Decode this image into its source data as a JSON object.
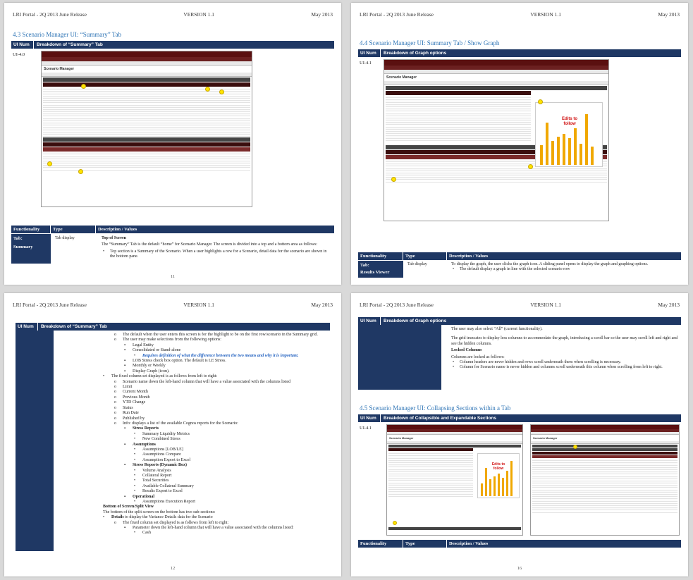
{
  "header": {
    "left": "LRI Portal - 2Q 2013 June Release",
    "center": "VERSION 1.1",
    "right": "May 2013"
  },
  "page1": {
    "section": "4.3   Scenario Manager UI: “Summary” Tab",
    "bar_col1": "UI Num",
    "bar_col2": "Breakdown of “Summary” Tab",
    "uinum": "UI-4.0",
    "func_cols": [
      "Functionality",
      "Type",
      "Description / Values"
    ],
    "tab_label": "Tab:",
    "tab_name": "Summary",
    "type": "Tab display",
    "desc_title": "Top of Screen",
    "desc_body": "The “Summary” Tab is the default “home” for Scenario Manager. The screen is divided into a top and a bottom area as follows:",
    "desc_bullet": "Top section is a Summary of the Scenario. When a user highlights a row for a Scenario, detail data for the scenario are shown in the bottom pane.",
    "page_number": "11"
  },
  "page2": {
    "section": "4.4   Scenario Manager UI: Summary Tab / Show Graph",
    "bar_col1": "UI Num",
    "bar_col2": "Breakdown of Graph options",
    "uinum": "UI-4.1",
    "func_cols": [
      "Functionality",
      "Type",
      "Description / Values"
    ],
    "tab_label": "Tab:",
    "tab_name": "Results Viewer",
    "type": "Tab display",
    "desc_body": "To display the graph, the user clicks the graph icon. A sliding panel opens to display the graph and graphing options.",
    "desc_bullet": "The default display a graph in line with the selected scenario row",
    "callout_text": "Edits to follow"
  },
  "page3": {
    "bar_col1": "UI Num",
    "bar_col2": "Breakdown of “Summary” Tab",
    "page_number": "12",
    "lines": [
      {
        "indent": 0,
        "marker": "o",
        "text": "The default when the user enters this screen is for the highlight to be on the first row/scenario in the Summary grid.",
        "style": ""
      },
      {
        "indent": 0,
        "marker": "o",
        "text": "The user may make selections from the following options:",
        "style": ""
      },
      {
        "indent": 1,
        "marker": "▪",
        "text": "Legal Entity",
        "style": ""
      },
      {
        "indent": 1,
        "marker": "▪",
        "text": "Consolidated or Stand-alone",
        "style": ""
      },
      {
        "indent": 2,
        "marker": "•",
        "text": "Requires definition of what the difference between the two means and why it is important.",
        "style": "i"
      },
      {
        "indent": 1,
        "marker": "▪",
        "text": "LOB Stress check box option. The default is LE Stress.",
        "style": ""
      },
      {
        "indent": 1,
        "marker": "▪",
        "text": "Monthly or Weekly",
        "style": ""
      },
      {
        "indent": 1,
        "marker": "▪",
        "text": "Display Graph (icon).",
        "style": ""
      },
      {
        "indent": -1,
        "marker": "•",
        "text": "The fixed column set displayed is as follows from left to right:",
        "style": ""
      },
      {
        "indent": 0,
        "marker": "o",
        "text": "Scenario name down the left-hand column that will have a value associated with the columns listed",
        "style": ""
      },
      {
        "indent": 0,
        "marker": "o",
        "text": "Limit",
        "style": ""
      },
      {
        "indent": 0,
        "marker": "o",
        "text": "Current Month",
        "style": ""
      },
      {
        "indent": 0,
        "marker": "o",
        "text": "Previous Month",
        "style": ""
      },
      {
        "indent": 0,
        "marker": "o",
        "text": "YTD Change",
        "style": ""
      },
      {
        "indent": 0,
        "marker": "o",
        "text": "Status",
        "style": ""
      },
      {
        "indent": 0,
        "marker": "o",
        "text": "Run Date",
        "style": ""
      },
      {
        "indent": 0,
        "marker": "o",
        "text": "Published by",
        "style": ""
      },
      {
        "indent": 0,
        "marker": "o",
        "text": "Info: displays a list of the available Cognos reports for the Scenario:",
        "style": ""
      },
      {
        "indent": 1,
        "marker": "▪",
        "text": "Stress Reports",
        "style": "b"
      },
      {
        "indent": 2,
        "marker": "•",
        "text": "Summary Liquidity Metrics",
        "style": ""
      },
      {
        "indent": 2,
        "marker": "•",
        "text": "New Combined Stress",
        "style": ""
      },
      {
        "indent": 1,
        "marker": "▪",
        "text": "Assumptions",
        "style": "b"
      },
      {
        "indent": 2,
        "marker": "•",
        "text": "Assumptions [LOB/LE]",
        "style": ""
      },
      {
        "indent": 2,
        "marker": "•",
        "text": "Assumptions Compare",
        "style": ""
      },
      {
        "indent": 2,
        "marker": "•",
        "text": "Assumption Export to Excel",
        "style": ""
      },
      {
        "indent": 1,
        "marker": "▪",
        "text": "Stress Reports (Dynamic Box)",
        "style": "b"
      },
      {
        "indent": 2,
        "marker": "•",
        "text": "Volume Analysis",
        "style": ""
      },
      {
        "indent": 2,
        "marker": "•",
        "text": "Collateral Report",
        "style": ""
      },
      {
        "indent": 2,
        "marker": "•",
        "text": "Total Securities",
        "style": ""
      },
      {
        "indent": 2,
        "marker": "•",
        "text": "Available Collateral Summary",
        "style": ""
      },
      {
        "indent": 2,
        "marker": "•",
        "text": "Results Export to Excel",
        "style": ""
      },
      {
        "indent": 1,
        "marker": "▪",
        "text": "Operational",
        "style": "b"
      },
      {
        "indent": 2,
        "marker": "•",
        "text": "Assumptions Execution Report",
        "style": ""
      },
      {
        "indent": -1,
        "marker": "",
        "text": "Bottom of Screen/Split View",
        "style": "b"
      },
      {
        "indent": -1,
        "marker": "",
        "text": "The bottom of the split screen on the bottom has two sub-sections:",
        "style": ""
      },
      {
        "indent": -1,
        "marker": "•",
        "text": "Details to display the Variance Details data for the Scenario",
        "style": "bfirst"
      },
      {
        "indent": 0,
        "marker": "o",
        "text": "The fixed column set displayed is as follows from left to right:",
        "style": ""
      },
      {
        "indent": 1,
        "marker": "▪",
        "text": "Parameter down the left-hand column that will have a value associated with the columns listed:",
        "style": ""
      },
      {
        "indent": 2,
        "marker": "•",
        "text": "Cash",
        "style": ""
      }
    ]
  },
  "page4": {
    "bar_col1": "UI Num",
    "bar_col2": "Breakdown of Graph options",
    "p_all": "The user may also select “All” (current functionality).",
    "p_grid": "The grid truncates to display less columns to accommodate the graph, introducing a scroll bar so the user may scroll left and right and see the hidden columns.",
    "locked_title": "Locked Columns",
    "locked_intro": "Columns are locked as follows:",
    "bullet1": "Column headers are never hidden and rows scroll underneath them when scrolling is necessary.",
    "bullet2": "Column for Scenario name is never hidden and columns scroll underneath this column when scrolling from left to right.",
    "section": "4.5   Scenario Manager UI: Collapsing Sections within a Tab",
    "bar2_col2": "Breakdown of Collapsible and Expandable Sections",
    "uinum": "UI-4.1",
    "func_cols": [
      "Functionality",
      "Type",
      "Description / Values"
    ],
    "page_number": "16",
    "callout_text": "Edits to follow"
  },
  "colors": {
    "navy": "#1f3864",
    "section_blue": "#2e74b5",
    "maroon": "#5a1010",
    "chart_orange": "#f0a800"
  }
}
